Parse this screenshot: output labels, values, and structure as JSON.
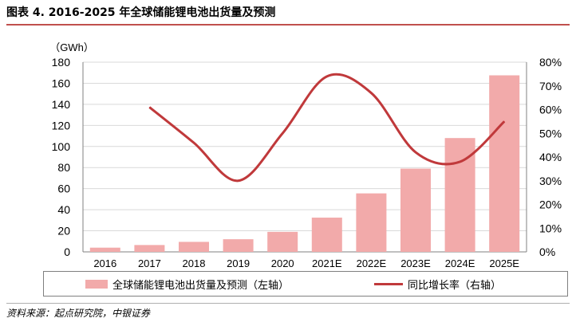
{
  "title": "图表 4. 2016-2025 年全球储能锂电池出货量及预测",
  "source": "资料来源：起点研究院，中银证券",
  "chart_data": {
    "type": "bar",
    "categories": [
      "2016",
      "2017",
      "2018",
      "2019",
      "2020",
      "2021E",
      "2022E",
      "2023E",
      "2024E",
      "2025E"
    ],
    "series": [
      {
        "name": "全球储能锂电池出货量及预测（左轴）",
        "type": "bar",
        "axis": "left",
        "color": "#f2aaaa",
        "values": [
          4,
          6.5,
          9.5,
          12,
          19,
          32.5,
          55.5,
          79,
          108,
          167.5
        ]
      },
      {
        "name": "同比增长率（右轴）",
        "type": "line",
        "axis": "right",
        "color": "#c0393b",
        "values": [
          null,
          61,
          46,
          30,
          50,
          74,
          67,
          42,
          38,
          55
        ]
      }
    ],
    "left_axis": {
      "unit": "（GWh）",
      "range": [
        0,
        180
      ],
      "ticks": [
        "0",
        "20",
        "40",
        "60",
        "80",
        "100",
        "120",
        "140",
        "160",
        "180"
      ]
    },
    "right_axis": {
      "range": [
        0,
        80
      ],
      "ticks": [
        "0%",
        "10%",
        "20%",
        "30%",
        "40%",
        "50%",
        "60%",
        "70%",
        "80%"
      ]
    },
    "grid": true,
    "legend_position": "bottom"
  }
}
